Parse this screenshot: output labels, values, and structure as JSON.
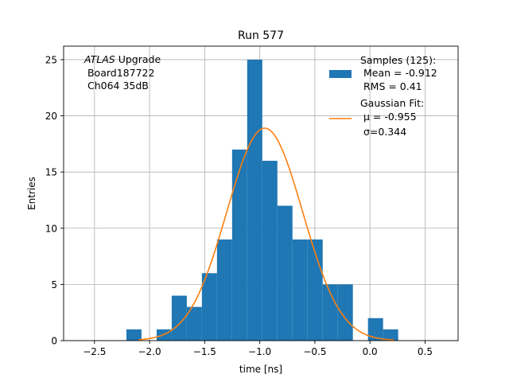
{
  "chart_data": {
    "type": "bar",
    "title": "Run 577",
    "xlabel": "time [ns]",
    "ylabel": "Entries",
    "xlim": [
      -2.78,
      0.8
    ],
    "ylim": [
      0,
      26.2
    ],
    "grid": true,
    "xticks": [
      -2.5,
      -2.0,
      -1.5,
      -1.0,
      -0.5,
      0.0,
      0.5
    ],
    "xtick_labels": [
      "−2.5",
      "−2.0",
      "−1.5",
      "−1.0",
      "−0.5",
      "0.0",
      "0.5"
    ],
    "yticks": [
      0,
      5,
      10,
      15,
      20,
      25
    ],
    "ytick_labels": [
      "0",
      "5",
      "10",
      "15",
      "20",
      "25"
    ],
    "histogram": {
      "bin_edges": [
        -2.21,
        -2.073,
        -1.936,
        -1.799,
        -1.662,
        -1.525,
        -1.388,
        -1.251,
        -1.114,
        -0.977,
        -0.84,
        -0.703,
        -0.566,
        -0.429,
        -0.292,
        -0.155,
        -0.018,
        0.119,
        0.256,
        0.393
      ],
      "counts": [
        1,
        0,
        1,
        4,
        3,
        6,
        9,
        17,
        25,
        16,
        12,
        9,
        9,
        5,
        5,
        0,
        2,
        1,
        0
      ],
      "color": "#1f77b4"
    },
    "fit": {
      "mu": -0.955,
      "sigma": 0.344,
      "amplitude": 18.9,
      "x_range": [
        -2.1,
        0.22
      ],
      "color": "#ff7f0e"
    },
    "annotation": {
      "line1_italic": "ATLAS",
      "line1_rest": " Upgrade",
      "line2": " Board187722",
      "line3": " Ch064 35dB"
    },
    "legend": {
      "position": "top-right",
      "samples": {
        "line1": "Samples (125):",
        "line2": " Mean = -0.912",
        "line3": " RMS = 0.41"
      },
      "fit": {
        "line1": "Gaussian Fit:",
        "line2": " μ = -0.955",
        "line3": " σ=0.344"
      }
    }
  }
}
